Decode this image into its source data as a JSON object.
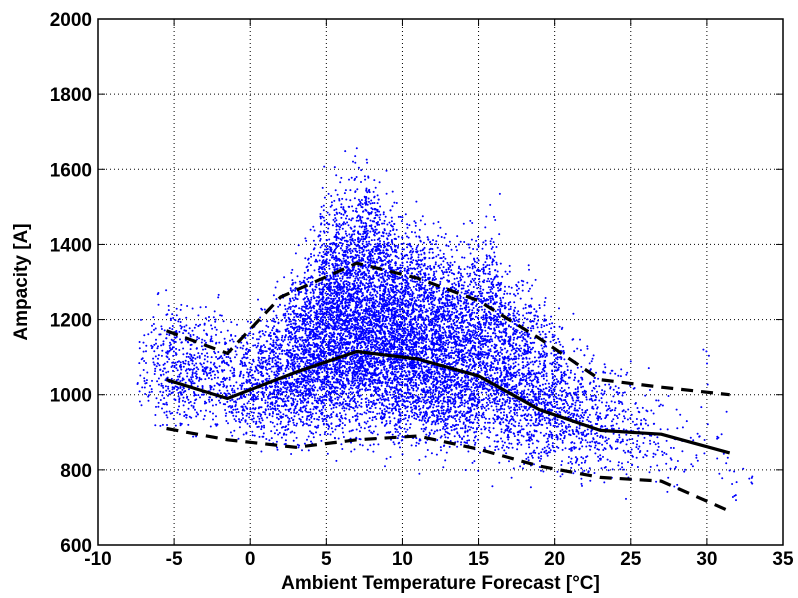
{
  "chart_data": {
    "type": "scatter",
    "xlabel": "Ambient Temperature Forecast [°C]",
    "ylabel": "Ampacity [A]",
    "xlim": [
      -10,
      35
    ],
    "ylim": [
      600,
      2000
    ],
    "xticks": [
      -10,
      -5,
      0,
      5,
      10,
      15,
      20,
      25,
      30,
      35
    ],
    "yticks": [
      600,
      800,
      1000,
      1200,
      1400,
      1600,
      1800,
      2000
    ],
    "grid": true,
    "grid_style": "dotted",
    "colors": {
      "points": "#0000ff",
      "lines": "#000000"
    },
    "scatter_density": [
      {
        "x": -7,
        "y_min": 900,
        "y_max": 1260,
        "n": 35
      },
      {
        "x": -6,
        "y_min": 840,
        "y_max": 1370,
        "n": 90
      },
      {
        "x": -5,
        "y_min": 840,
        "y_max": 1390,
        "n": 150
      },
      {
        "x": -4,
        "y_min": 840,
        "y_max": 1330,
        "n": 140
      },
      {
        "x": -3,
        "y_min": 840,
        "y_max": 1330,
        "n": 120
      },
      {
        "x": -2,
        "y_min": 830,
        "y_max": 1350,
        "n": 110
      },
      {
        "x": -1,
        "y_min": 820,
        "y_max": 1280,
        "n": 120
      },
      {
        "x": 0,
        "y_min": 810,
        "y_max": 1300,
        "n": 170
      },
      {
        "x": 1,
        "y_min": 800,
        "y_max": 1350,
        "n": 230
      },
      {
        "x": 2,
        "y_min": 790,
        "y_max": 1400,
        "n": 300
      },
      {
        "x": 3,
        "y_min": 780,
        "y_max": 1480,
        "n": 420
      },
      {
        "x": 4,
        "y_min": 770,
        "y_max": 1560,
        "n": 560
      },
      {
        "x": 5,
        "y_min": 760,
        "y_max": 1700,
        "n": 720
      },
      {
        "x": 6,
        "y_min": 750,
        "y_max": 1760,
        "n": 800
      },
      {
        "x": 7,
        "y_min": 750,
        "y_max": 1790,
        "n": 820
      },
      {
        "x": 8,
        "y_min": 750,
        "y_max": 1810,
        "n": 800
      },
      {
        "x": 9,
        "y_min": 750,
        "y_max": 1720,
        "n": 760
      },
      {
        "x": 10,
        "y_min": 750,
        "y_max": 1650,
        "n": 700
      },
      {
        "x": 11,
        "y_min": 750,
        "y_max": 1660,
        "n": 650
      },
      {
        "x": 12,
        "y_min": 745,
        "y_max": 1600,
        "n": 600
      },
      {
        "x": 13,
        "y_min": 740,
        "y_max": 1560,
        "n": 560
      },
      {
        "x": 14,
        "y_min": 740,
        "y_max": 1560,
        "n": 520
      },
      {
        "x": 15,
        "y_min": 735,
        "y_max": 1620,
        "n": 480
      },
      {
        "x": 16,
        "y_min": 730,
        "y_max": 1620,
        "n": 430
      },
      {
        "x": 17,
        "y_min": 725,
        "y_max": 1500,
        "n": 380
      },
      {
        "x": 18,
        "y_min": 720,
        "y_max": 1450,
        "n": 330
      },
      {
        "x": 19,
        "y_min": 720,
        "y_max": 1400,
        "n": 280
      },
      {
        "x": 20,
        "y_min": 715,
        "y_max": 1350,
        "n": 230
      },
      {
        "x": 21,
        "y_min": 710,
        "y_max": 1300,
        "n": 180
      },
      {
        "x": 22,
        "y_min": 700,
        "y_max": 1250,
        "n": 140
      },
      {
        "x": 23,
        "y_min": 700,
        "y_max": 1220,
        "n": 110
      },
      {
        "x": 24,
        "y_min": 690,
        "y_max": 1200,
        "n": 80
      },
      {
        "x": 25,
        "y_min": 680,
        "y_max": 1160,
        "n": 60
      },
      {
        "x": 26,
        "y_min": 700,
        "y_max": 1120,
        "n": 40
      },
      {
        "x": 27,
        "y_min": 700,
        "y_max": 1100,
        "n": 30
      },
      {
        "x": 28,
        "y_min": 700,
        "y_max": 1100,
        "n": 20
      },
      {
        "x": 29,
        "y_min": 720,
        "y_max": 1080,
        "n": 12
      },
      {
        "x": 30,
        "y_min": 730,
        "y_max": 1250,
        "n": 10
      },
      {
        "x": 31,
        "y_min": 690,
        "y_max": 1050,
        "n": 12
      },
      {
        "x": 32,
        "y_min": 680,
        "y_max": 850,
        "n": 8
      },
      {
        "x": 33,
        "y_min": 720,
        "y_max": 820,
        "n": 5
      }
    ],
    "series": [
      {
        "style": "solid",
        "x": [
          -5.5,
          -1.5,
          3,
          7,
          11,
          15,
          19,
          23,
          27,
          31.5
        ],
        "y": [
          1040,
          990,
          1060,
          1115,
          1095,
          1050,
          960,
          905,
          895,
          845
        ]
      },
      {
        "style": "dashed",
        "x": [
          -5.5,
          -1.5,
          2,
          7,
          11,
          15,
          19,
          23,
          27,
          31.5
        ],
        "y": [
          1170,
          1110,
          1260,
          1350,
          1310,
          1250,
          1150,
          1040,
          1020,
          1000
        ]
      },
      {
        "style": "dashed",
        "x": [
          -5.5,
          -1.5,
          3,
          7,
          11,
          15,
          19,
          23,
          27,
          31.5
        ],
        "y": [
          910,
          880,
          860,
          880,
          890,
          855,
          810,
          780,
          770,
          690
        ]
      }
    ]
  }
}
